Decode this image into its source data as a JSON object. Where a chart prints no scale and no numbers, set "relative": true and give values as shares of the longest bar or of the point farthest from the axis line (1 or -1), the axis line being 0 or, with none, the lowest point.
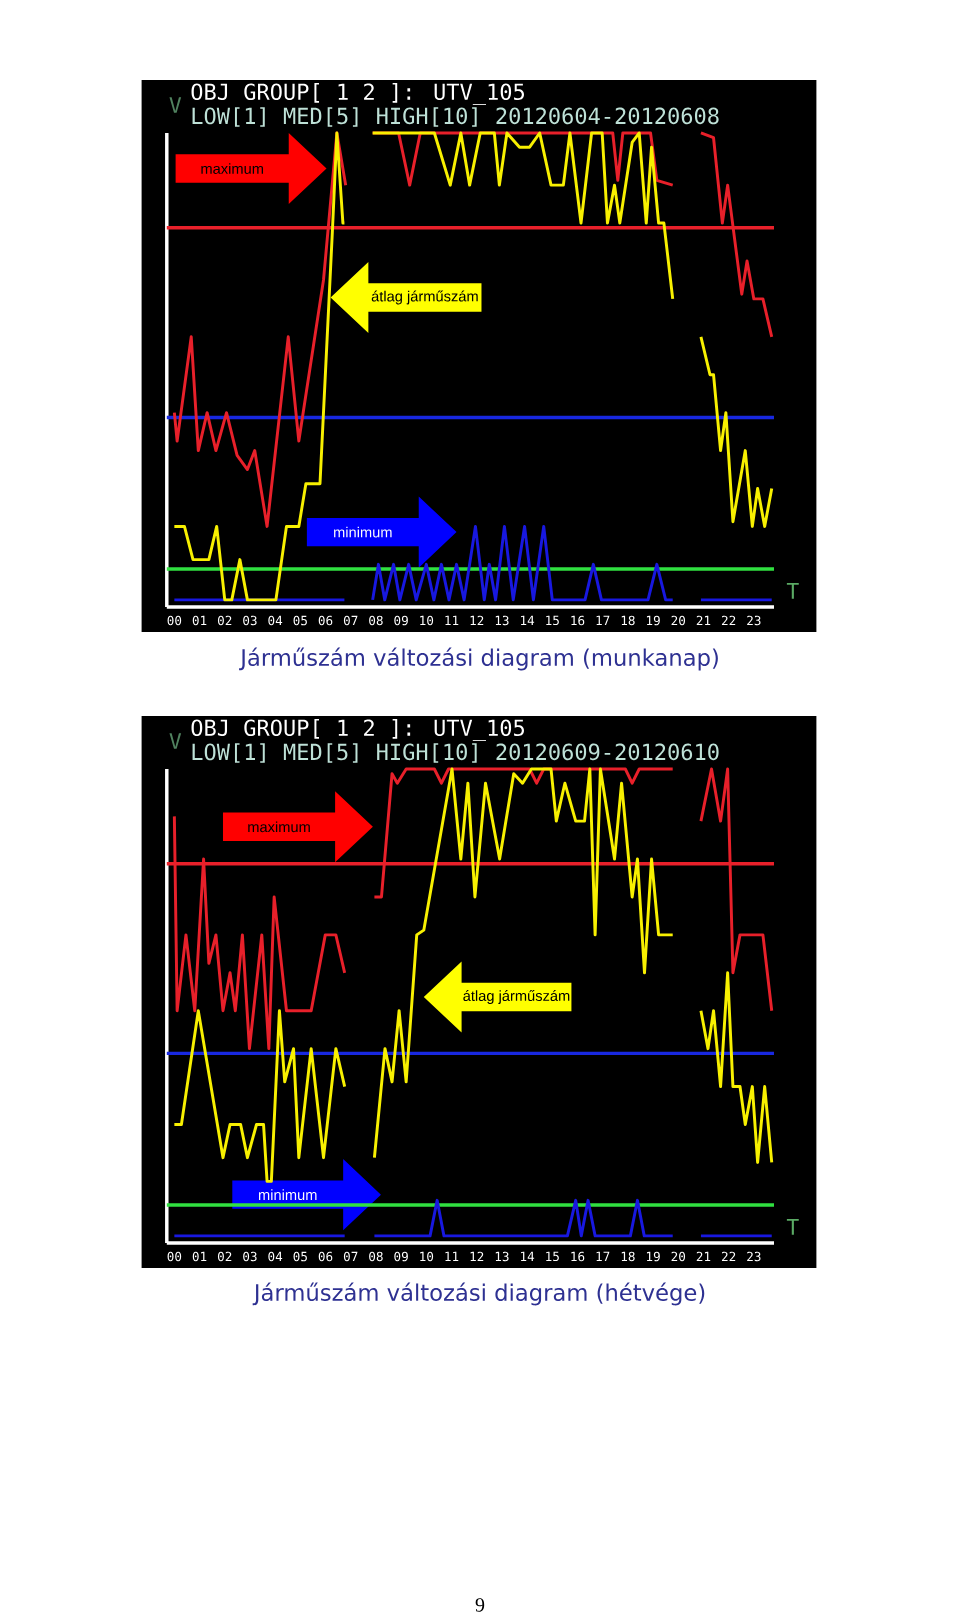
{
  "chart_data": [
    {
      "type": "line",
      "relative": true,
      "title": "OBJ GROUP[ 1 2 ]: UTV_105",
      "subtitle": "LOW[1] MED[5] HIGH[10] 20120604-20120608",
      "xlabel": "T",
      "ylabel": "V",
      "annotations": [
        "maximum",
        "átlag járműszám",
        "minimum",
        "Járműszám változási diagram (munkanap)"
      ],
      "xlim": [
        -0.3,
        23.8
      ],
      "xticks": [
        {
          "value": 0,
          "label": "00"
        },
        {
          "value": 1,
          "label": "01"
        },
        {
          "value": 2,
          "label": "02"
        },
        {
          "value": 3,
          "label": "03"
        },
        {
          "value": 4,
          "label": "04"
        },
        {
          "value": 5,
          "label": "05"
        },
        {
          "value": 6,
          "label": "06"
        },
        {
          "value": 7,
          "label": "07"
        },
        {
          "value": 8,
          "label": "08"
        },
        {
          "value": 9,
          "label": "09"
        },
        {
          "value": 10,
          "label": "10"
        },
        {
          "value": 11,
          "label": "11"
        },
        {
          "value": 12,
          "label": "12"
        },
        {
          "value": 13,
          "label": "13"
        },
        {
          "value": 14,
          "label": "14"
        },
        {
          "value": 15,
          "label": "15"
        },
        {
          "value": 16,
          "label": "16"
        },
        {
          "value": 17,
          "label": "17"
        },
        {
          "value": 18,
          "label": "18"
        },
        {
          "value": 19,
          "label": "19"
        },
        {
          "value": 20,
          "label": "20"
        },
        {
          "value": 21,
          "label": "21"
        },
        {
          "value": 22,
          "label": "22"
        },
        {
          "value": 23,
          "label": "23"
        }
      ],
      "ref_lines": [
        {
          "axis": "y",
          "value": 0.8,
          "color": "#e8202a"
        },
        {
          "axis": "y",
          "value": 0.4,
          "color": "#1828e0"
        },
        {
          "axis": "y",
          "value": 0.08,
          "color": "#30e040"
        }
      ],
      "series": [
        {
          "color": "#1818e0",
          "x": [
            0,
            6.75,
            7.2,
            7.87,
            8.1,
            8.35,
            8.7,
            8.95,
            9.3,
            9.6,
            10.0,
            10.3,
            10.6,
            10.9,
            11.2,
            11.5,
            11.95,
            12.3,
            12.5,
            12.75,
            13.1,
            13.45,
            13.9,
            14.25,
            14.66,
            15.0,
            16.3,
            16.63,
            16.95,
            18.8,
            19.15,
            19.5,
            19.78,
            20.5,
            20.9,
            23.71
          ],
          "values": [
            0.015,
            0.015,
            null,
            0.015,
            0.09,
            0.015,
            0.09,
            0.015,
            0.09,
            0.015,
            0.09,
            0.015,
            0.09,
            0.015,
            0.09,
            0.015,
            0.17,
            0.015,
            0.09,
            0.015,
            0.17,
            0.015,
            0.17,
            0.015,
            0.17,
            0.015,
            0.015,
            0.09,
            0.015,
            0.015,
            0.09,
            0.015,
            0.015,
            null,
            0.015,
            0.015
          ]
        },
        {
          "color": "#e8202a",
          "x": [
            0,
            0.11,
            0.67,
            0.95,
            1.3,
            1.65,
            2.07,
            2.49,
            2.9,
            3.19,
            3.68,
            4.52,
            4.94,
            5.92,
            6.45,
            6.8,
            7.2,
            7.87,
            8.9,
            9.34,
            9.76,
            17.4,
            17.6,
            17.8,
            18.9,
            19.15,
            19.78,
            20.5,
            20.9,
            21.4,
            21.75,
            21.96,
            22.52,
            22.73,
            23.0,
            23.36,
            23.71
          ],
          "values": [
            0.41,
            0.35,
            0.57,
            0.33,
            0.41,
            0.33,
            0.41,
            0.32,
            0.29,
            0.33,
            0.17,
            0.57,
            0.35,
            0.69,
            1.0,
            0.89,
            null,
            1.0,
            1.0,
            0.89,
            1.0,
            1.0,
            0.9,
            1.0,
            1.0,
            0.9,
            0.89,
            null,
            1.0,
            0.99,
            0.81,
            0.89,
            0.66,
            0.73,
            0.65,
            0.65,
            0.57
          ]
        },
        {
          "color": "#f8f000",
          "x": [
            0,
            0.4,
            0.74,
            1.37,
            1.68,
            2.0,
            2.28,
            2.6,
            2.9,
            4.03,
            4.45,
            4.94,
            5.22,
            5.78,
            6.27,
            6.45,
            6.69,
            6.75,
            7.2,
            7.87,
            10.32,
            10.95,
            11.37,
            11.72,
            12.14,
            12.7,
            12.9,
            13.2,
            13.7,
            14.1,
            14.5,
            14.95,
            15.44,
            15.7,
            16.14,
            16.56,
            16.98,
            17.19,
            17.47,
            17.68,
            18.17,
            18.45,
            18.73,
            18.94,
            19.22,
            19.43,
            19.78,
            20.5,
            20.9,
            21.26,
            21.4,
            21.68,
            21.89,
            22.17,
            22.66,
            22.94,
            23.15,
            23.43,
            23.71
          ],
          "values": [
            0.17,
            0.17,
            0.1,
            0.1,
            0.17,
            0.015,
            0.015,
            0.1,
            0.015,
            0.015,
            0.17,
            0.17,
            0.26,
            0.26,
            0.79,
            1.0,
            0.81,
            0.81,
            null,
            1.0,
            1.0,
            0.89,
            1.0,
            0.89,
            1.0,
            1.0,
            0.89,
            1.0,
            0.97,
            0.97,
            1.0,
            0.89,
            0.89,
            1.0,
            0.81,
            1.0,
            1.0,
            0.81,
            0.89,
            0.81,
            0.98,
            1.0,
            0.81,
            0.97,
            0.81,
            0.81,
            0.65,
            null,
            0.57,
            0.49,
            0.49,
            0.33,
            0.41,
            0.18,
            0.33,
            0.17,
            0.25,
            0.17,
            0.25
          ]
        }
      ]
    },
    {
      "type": "line",
      "relative": true,
      "title": "OBJ GROUP[ 1 2 ]: UTV_105",
      "subtitle": "LOW[1] MED[5] HIGH[10] 20120609-20120610",
      "xlabel": "T",
      "ylabel": "V",
      "annotations": [
        "maximum",
        "átlag járműszám",
        "minimum",
        "Járműszám változási diagram (hétvége)",
        "9"
      ],
      "xlim": [
        -0.3,
        23.8
      ],
      "xticks": [
        {
          "value": 0,
          "label": "00"
        },
        {
          "value": 1,
          "label": "01"
        },
        {
          "value": 2,
          "label": "02"
        },
        {
          "value": 3,
          "label": "03"
        },
        {
          "value": 4,
          "label": "04"
        },
        {
          "value": 5,
          "label": "05"
        },
        {
          "value": 6,
          "label": "06"
        },
        {
          "value": 7,
          "label": "07"
        },
        {
          "value": 8,
          "label": "08"
        },
        {
          "value": 9,
          "label": "09"
        },
        {
          "value": 10,
          "label": "10"
        },
        {
          "value": 11,
          "label": "11"
        },
        {
          "value": 12,
          "label": "12"
        },
        {
          "value": 13,
          "label": "13"
        },
        {
          "value": 14,
          "label": "14"
        },
        {
          "value": 15,
          "label": "15"
        },
        {
          "value": 16,
          "label": "16"
        },
        {
          "value": 17,
          "label": "17"
        },
        {
          "value": 18,
          "label": "18"
        },
        {
          "value": 19,
          "label": "19"
        },
        {
          "value": 20,
          "label": "20"
        },
        {
          "value": 21,
          "label": "21"
        },
        {
          "value": 22,
          "label": "22"
        },
        {
          "value": 23,
          "label": "23"
        }
      ],
      "ref_lines": [
        {
          "axis": "y",
          "value": 0.8,
          "color": "#e8202a"
        },
        {
          "axis": "y",
          "value": 0.4,
          "color": "#1828e0"
        },
        {
          "axis": "y",
          "value": 0.08,
          "color": "#30e040"
        }
      ],
      "series": [
        {
          "color": "#1818e0",
          "x": [
            0,
            6.76,
            7.2,
            7.94,
            10.15,
            10.43,
            10.7,
            15.6,
            15.93,
            16.15,
            16.42,
            16.7,
            18.1,
            18.38,
            18.65,
            19.78,
            20.5,
            20.9,
            23.71
          ],
          "values": [
            0.015,
            0.015,
            null,
            0.015,
            0.015,
            0.09,
            0.015,
            0.015,
            0.09,
            0.015,
            0.09,
            0.015,
            0.015,
            0.09,
            0.015,
            0.015,
            null,
            0.015,
            0.015
          ]
        },
        {
          "color": "#e8202a",
          "x": [
            0,
            0.11,
            0.46,
            0.81,
            1.16,
            1.37,
            1.65,
            1.93,
            2.21,
            2.42,
            2.7,
            2.98,
            3.47,
            3.75,
            3.96,
            4.45,
            5.43,
            5.99,
            6.41,
            6.76,
            7.2,
            7.94,
            8.22,
            8.64,
            8.85,
            9.2,
            10.32,
            10.6,
            10.88,
            14.1,
            14.38,
            14.66,
            17.9,
            18.17,
            18.45,
            19.78,
            20.5,
            20.9,
            21.32,
            21.68,
            21.96,
            22.17,
            22.45,
            23.36,
            23.71
          ],
          "values": [
            0.9,
            0.49,
            0.65,
            0.49,
            0.81,
            0.59,
            0.65,
            0.49,
            0.57,
            0.49,
            0.65,
            0.41,
            0.65,
            0.41,
            0.73,
            0.49,
            0.49,
            0.65,
            0.65,
            0.57,
            null,
            0.73,
            0.73,
            0.99,
            0.97,
            1.0,
            1.0,
            0.97,
            1.0,
            1.0,
            0.97,
            1.0,
            1.0,
            0.97,
            1.0,
            1.0,
            null,
            0.89,
            1.0,
            0.89,
            1.0,
            0.57,
            0.65,
            0.65,
            0.49
          ]
        },
        {
          "color": "#f8f000",
          "x": [
            0,
            0.28,
            0.95,
            1.93,
            2.21,
            2.63,
            2.9,
            3.26,
            3.54,
            3.68,
            3.85,
            4.17,
            4.38,
            4.73,
            4.94,
            5.43,
            5.92,
            6.41,
            6.76,
            7.2,
            7.94,
            8.36,
            8.64,
            8.92,
            9.2,
            9.62,
            9.9,
            11.02,
            11.37,
            11.65,
            11.93,
            12.35,
            12.91,
            13.47,
            13.82,
            14.17,
            14.95,
            15.16,
            15.5,
            15.93,
            16.28,
            16.49,
            16.7,
            16.91,
            17.47,
            17.75,
            18.17,
            18.38,
            18.66,
            18.94,
            19.22,
            19.78,
            20.5,
            20.9,
            21.18,
            21.4,
            21.68,
            21.96,
            22.17,
            22.45,
            22.66,
            22.94,
            23.15,
            23.43,
            23.71
          ],
          "values": [
            0.25,
            0.25,
            0.49,
            0.18,
            0.25,
            0.25,
            0.18,
            0.25,
            0.25,
            0.13,
            0.13,
            0.49,
            0.34,
            0.41,
            0.18,
            0.41,
            0.18,
            0.41,
            0.33,
            null,
            0.18,
            0.41,
            0.34,
            0.49,
            0.34,
            0.65,
            0.66,
            1.0,
            0.81,
            0.97,
            0.73,
            0.97,
            0.81,
            0.99,
            0.97,
            1.0,
            1.0,
            0.89,
            0.97,
            0.89,
            0.89,
            1.0,
            0.65,
            1.0,
            0.81,
            0.97,
            0.73,
            0.81,
            0.57,
            0.81,
            0.65,
            0.65,
            null,
            0.49,
            0.41,
            0.49,
            0.33,
            0.57,
            0.33,
            0.33,
            0.25,
            0.33,
            0.17,
            0.33,
            0.17
          ]
        }
      ]
    }
  ]
}
